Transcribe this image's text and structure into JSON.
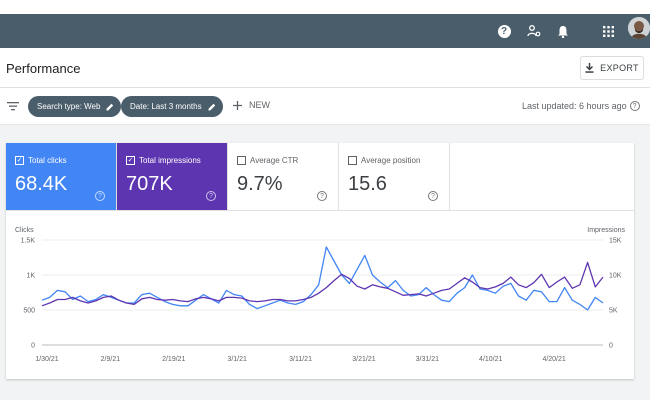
{
  "header": {
    "icons": [
      "help-icon",
      "account-settings-icon",
      "bell-icon",
      "apps-grid-icon"
    ],
    "avatar": "user-avatar"
  },
  "page": {
    "title": "Performance",
    "export_label": "EXPORT"
  },
  "filters": {
    "search_type": "Search type: Web",
    "date": "Date: Last 3 months",
    "new_label": "NEW",
    "last_updated": "Last updated: 6 hours ago"
  },
  "metrics": [
    {
      "label": "Total clicks",
      "value": "68.4K",
      "checked": true,
      "color": "#4285f4"
    },
    {
      "label": "Total impressions",
      "value": "707K",
      "checked": true,
      "color": "#5e35b1"
    },
    {
      "label": "Average CTR",
      "value": "9.7%",
      "checked": false
    },
    {
      "label": "Average position",
      "value": "15.6",
      "checked": false
    }
  ],
  "chart_data": {
    "type": "line",
    "left_axis": {
      "title": "Clicks",
      "ticks": [
        "0",
        "500",
        "1K",
        "1.5K"
      ],
      "ylim": [
        0,
        1500
      ]
    },
    "right_axis": {
      "title": "Impressions",
      "ticks": [
        "0",
        "5K",
        "10K",
        "15K"
      ],
      "ylim": [
        0,
        15000
      ]
    },
    "x_ticks": [
      "1/30/21",
      "2/9/21",
      "2/19/21",
      "3/1/21",
      "3/11/21",
      "3/21/21",
      "3/31/21",
      "4/10/21",
      "4/20/21"
    ],
    "grid": true,
    "series": [
      {
        "name": "Total clicks",
        "axis": "left",
        "color": "#4285f4",
        "values": [
          640,
          680,
          780,
          760,
          650,
          700,
          620,
          650,
          720,
          680,
          640,
          600,
          600,
          720,
          740,
          680,
          620,
          580,
          560,
          560,
          640,
          720,
          660,
          600,
          780,
          720,
          700,
          580,
          520,
          560,
          600,
          640,
          600,
          580,
          620,
          720,
          860,
          1400,
          1200,
          1000,
          880,
          1080,
          1280,
          1000,
          900,
          820,
          920,
          780,
          700,
          720,
          820,
          720,
          640,
          620,
          740,
          820,
          1000,
          800,
          780,
          740,
          840,
          880,
          700,
          640,
          780,
          760,
          620,
          620,
          820,
          640,
          580,
          500,
          680,
          600
        ]
      },
      {
        "name": "Total impressions",
        "axis": "right",
        "color": "#5e35b1",
        "values": [
          5600,
          6000,
          6500,
          6500,
          6800,
          6300,
          6000,
          6300,
          6800,
          7000,
          6400,
          6000,
          5800,
          6600,
          6800,
          6500,
          6400,
          6500,
          6300,
          6200,
          6600,
          6800,
          6600,
          6300,
          6800,
          6800,
          6700,
          6300,
          6200,
          6300,
          6500,
          6500,
          6300,
          6300,
          6500,
          6800,
          7400,
          8200,
          9200,
          10100,
          9500,
          8400,
          8000,
          8600,
          8300,
          8100,
          7600,
          7100,
          7200,
          7300,
          7000,
          7400,
          7800,
          8000,
          8800,
          9600,
          9000,
          8200,
          8000,
          8300,
          8800,
          9700,
          8600,
          8200,
          8900,
          10100,
          8200,
          9000,
          9700,
          8100,
          8600,
          11800,
          8300,
          9700
        ]
      }
    ]
  }
}
